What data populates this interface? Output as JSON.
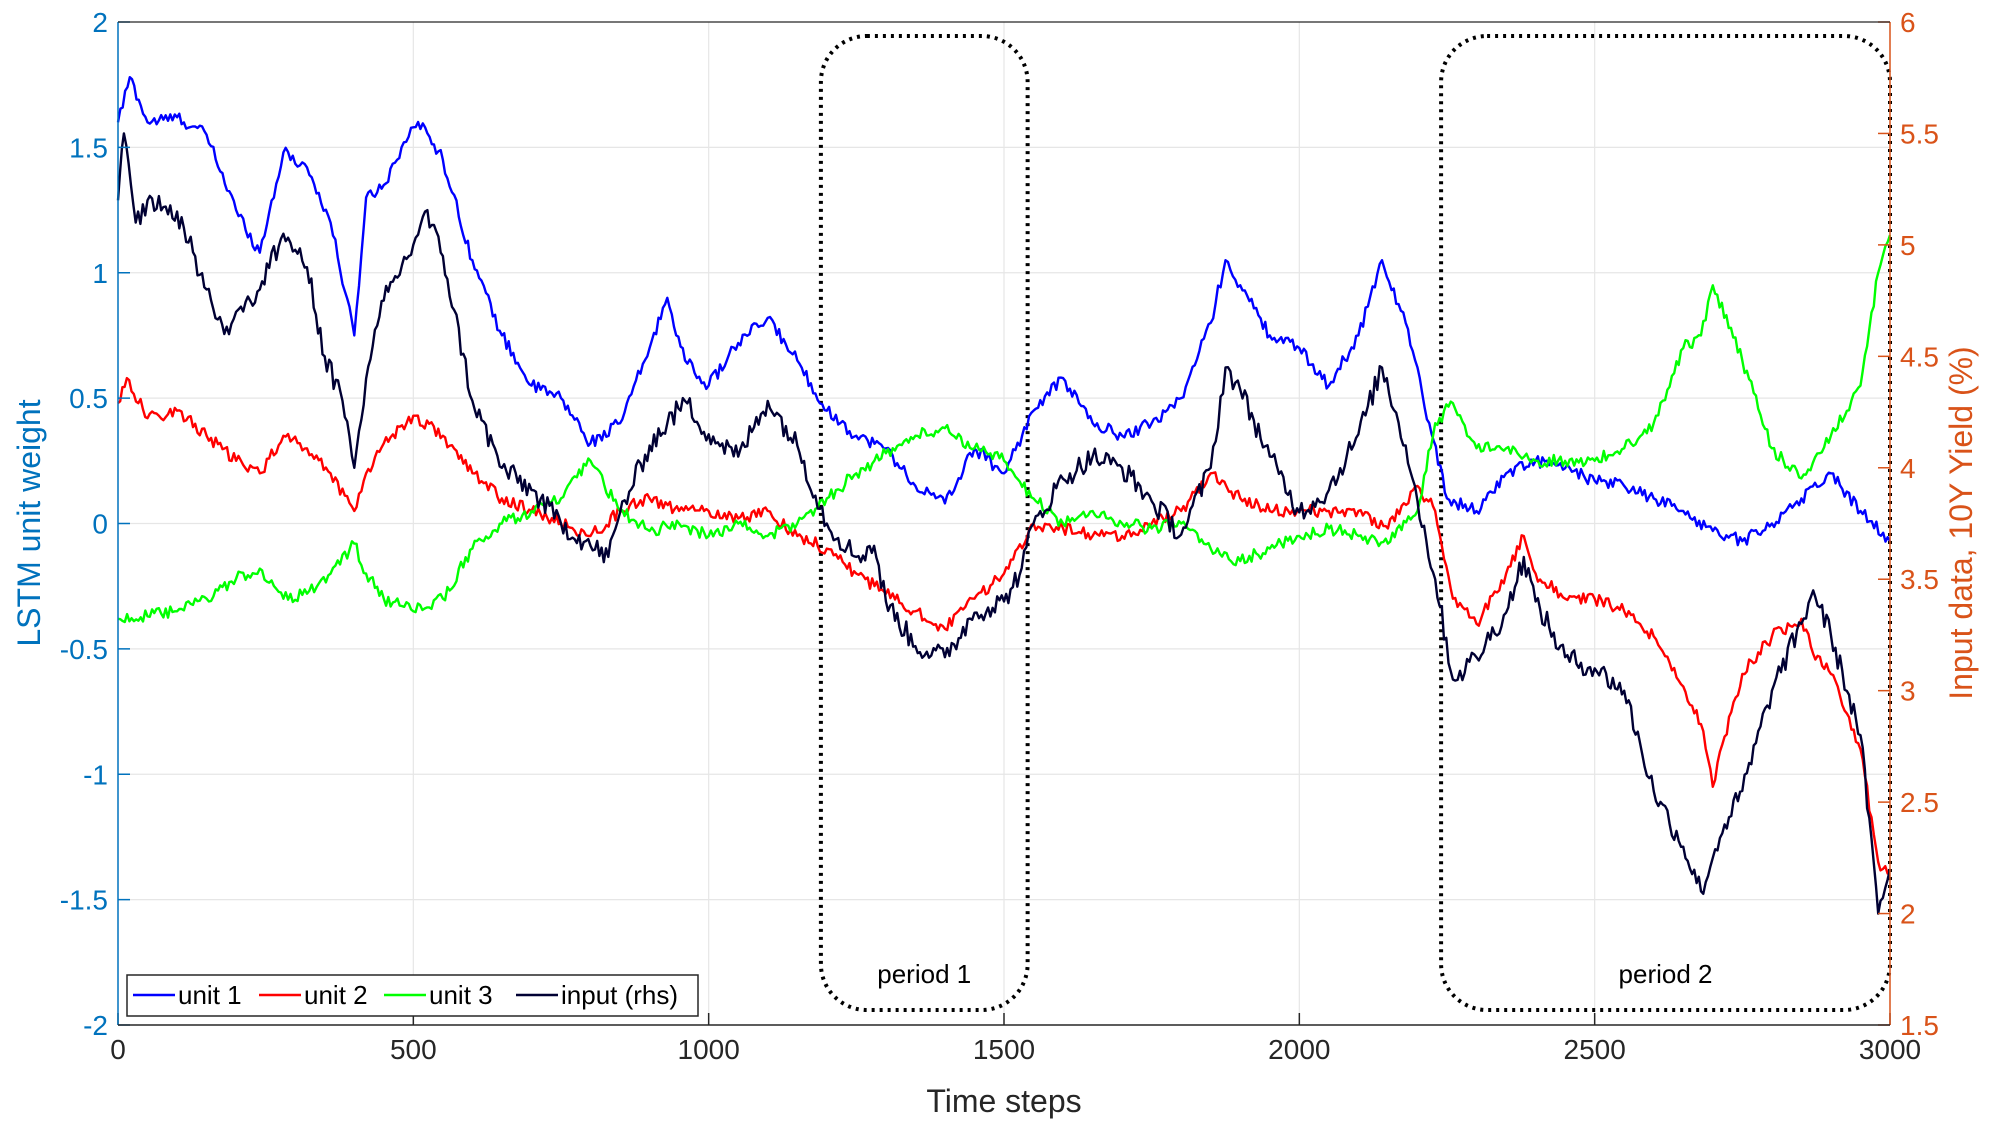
{
  "chart_data": {
    "type": "line",
    "xlabel": "Time steps",
    "ylabel_left": "LSTM unit weight",
    "ylabel_right": "Input data, 10Y Yield (%)",
    "xlim": [
      0,
      3000
    ],
    "ylim_left": [
      -2,
      2
    ],
    "ylim_right": [
      1.5,
      6
    ],
    "x_ticks": [
      "0",
      "500",
      "1000",
      "1500",
      "2000",
      "2500",
      "3000"
    ],
    "y_left_ticks": [
      "2",
      "1.5",
      "1",
      "0.5",
      "0",
      "-0.5",
      "-1",
      "-1.5",
      "-2"
    ],
    "y_right_ticks": [
      "6",
      "5.5",
      "5",
      "4.5",
      "4",
      "3.5",
      "3",
      "2.5",
      "2",
      "1.5"
    ],
    "grid": true,
    "legend_position": "bottom-left",
    "periods": [
      {
        "label": "period 1",
        "x_start": 1190,
        "x_end": 1540
      },
      {
        "label": "period 2",
        "x_start": 2240,
        "x_end": 3000
      }
    ],
    "series": [
      {
        "name": "unit 1",
        "axis": "left",
        "color": "#0000FF",
        "x": [
          0,
          20,
          50,
          100,
          150,
          200,
          240,
          280,
          320,
          360,
          400,
          420,
          450,
          480,
          500,
          520,
          550,
          600,
          650,
          700,
          750,
          800,
          850,
          900,
          930,
          960,
          1000,
          1050,
          1100,
          1150,
          1200,
          1250,
          1300,
          1350,
          1400,
          1450,
          1500,
          1550,
          1600,
          1650,
          1700,
          1750,
          1800,
          1850,
          1875,
          1900,
          1950,
          2000,
          2050,
          2100,
          2140,
          2180,
          2220,
          2250,
          2300,
          2350,
          2400,
          2450,
          2500,
          2550,
          2600,
          2650,
          2700,
          2750,
          2800,
          2850,
          2900,
          2950,
          3000
        ],
        "y": [
          1.6,
          1.78,
          1.6,
          1.62,
          1.55,
          1.25,
          1.08,
          1.48,
          1.42,
          1.2,
          0.75,
          1.3,
          1.35,
          1.5,
          1.58,
          1.58,
          1.45,
          1.05,
          0.75,
          0.55,
          0.5,
          0.32,
          0.4,
          0.7,
          0.9,
          0.65,
          0.55,
          0.72,
          0.82,
          0.65,
          0.45,
          0.35,
          0.3,
          0.15,
          0.08,
          0.3,
          0.2,
          0.45,
          0.58,
          0.4,
          0.35,
          0.4,
          0.5,
          0.8,
          1.05,
          0.95,
          0.75,
          0.7,
          0.55,
          0.75,
          1.05,
          0.8,
          0.4,
          0.1,
          0.05,
          0.2,
          0.25,
          0.22,
          0.17,
          0.15,
          0.1,
          0.05,
          -0.03,
          -0.07,
          0.0,
          0.1,
          0.2,
          0.05,
          -0.07
        ]
      },
      {
        "name": "unit 2",
        "axis": "left",
        "color": "#FF0000",
        "x": [
          0,
          15,
          50,
          100,
          150,
          200,
          240,
          280,
          320,
          360,
          400,
          420,
          450,
          500,
          550,
          600,
          650,
          700,
          750,
          800,
          850,
          900,
          950,
          1000,
          1050,
          1100,
          1150,
          1200,
          1250,
          1300,
          1350,
          1400,
          1450,
          1500,
          1550,
          1600,
          1650,
          1700,
          1750,
          1800,
          1850,
          1900,
          1950,
          2000,
          2050,
          2100,
          2150,
          2200,
          2230,
          2260,
          2300,
          2350,
          2380,
          2400,
          2450,
          2500,
          2550,
          2600,
          2650,
          2680,
          2700,
          2720,
          2750,
          2800,
          2850,
          2870,
          2900,
          2950,
          2980,
          3000
        ],
        "y": [
          0.48,
          0.58,
          0.42,
          0.45,
          0.35,
          0.25,
          0.2,
          0.35,
          0.3,
          0.2,
          0.05,
          0.2,
          0.32,
          0.43,
          0.35,
          0.2,
          0.1,
          0.05,
          0.0,
          -0.05,
          0.05,
          0.1,
          0.05,
          0.05,
          0.02,
          0.05,
          -0.05,
          -0.1,
          -0.2,
          -0.28,
          -0.35,
          -0.42,
          -0.3,
          -0.2,
          0.0,
          -0.02,
          -0.05,
          -0.05,
          0.0,
          0.05,
          0.2,
          0.1,
          0.05,
          0.05,
          0.05,
          0.05,
          -0.02,
          0.15,
          0.05,
          -0.3,
          -0.4,
          -0.2,
          -0.05,
          -0.2,
          -0.3,
          -0.3,
          -0.35,
          -0.45,
          -0.65,
          -0.8,
          -1.05,
          -0.85,
          -0.6,
          -0.45,
          -0.38,
          -0.52,
          -0.6,
          -0.9,
          -1.35,
          -1.4
        ]
      },
      {
        "name": "unit 3",
        "axis": "left",
        "color": "#00FF00",
        "x": [
          0,
          50,
          100,
          150,
          200,
          240,
          280,
          320,
          360,
          400,
          420,
          450,
          500,
          550,
          600,
          650,
          700,
          750,
          800,
          850,
          900,
          950,
          1000,
          1050,
          1100,
          1150,
          1200,
          1250,
          1300,
          1350,
          1400,
          1450,
          1500,
          1550,
          1600,
          1650,
          1700,
          1750,
          1800,
          1850,
          1900,
          1950,
          2000,
          2050,
          2100,
          2150,
          2200,
          2230,
          2260,
          2300,
          2350,
          2400,
          2450,
          2500,
          2550,
          2600,
          2650,
          2680,
          2700,
          2750,
          2800,
          2850,
          2900,
          2950,
          2980,
          3000
        ],
        "y": [
          -0.38,
          -0.37,
          -0.35,
          -0.3,
          -0.22,
          -0.18,
          -0.3,
          -0.28,
          -0.2,
          -0.08,
          -0.2,
          -0.3,
          -0.35,
          -0.3,
          -0.1,
          0.0,
          0.05,
          0.1,
          0.25,
          0.05,
          -0.03,
          0.0,
          -0.05,
          0.0,
          -0.05,
          0.0,
          0.1,
          0.2,
          0.28,
          0.35,
          0.38,
          0.3,
          0.25,
          0.1,
          0.0,
          0.05,
          0.0,
          -0.02,
          0.0,
          -0.1,
          -0.15,
          -0.1,
          -0.05,
          -0.02,
          -0.05,
          -0.08,
          0.05,
          0.4,
          0.48,
          0.3,
          0.3,
          0.25,
          0.25,
          0.25,
          0.3,
          0.4,
          0.7,
          0.75,
          0.95,
          0.65,
          0.3,
          0.18,
          0.35,
          0.55,
          1.0,
          1.15
        ]
      },
      {
        "name": "input (rhs)",
        "axis": "right",
        "color": "#000033",
        "x": [
          0,
          10,
          30,
          50,
          100,
          150,
          180,
          200,
          240,
          280,
          320,
          350,
          380,
          400,
          420,
          450,
          500,
          520,
          550,
          600,
          650,
          700,
          750,
          800,
          830,
          850,
          900,
          930,
          960,
          1000,
          1050,
          1100,
          1150,
          1200,
          1250,
          1280,
          1300,
          1350,
          1400,
          1450,
          1500,
          1530,
          1550,
          1600,
          1650,
          1700,
          1750,
          1800,
          1850,
          1875,
          1900,
          1950,
          2000,
          2050,
          2100,
          2140,
          2180,
          2200,
          2230,
          2260,
          2300,
          2350,
          2380,
          2400,
          2450,
          2500,
          2550,
          2600,
          2650,
          2680,
          2700,
          2720,
          2750,
          2800,
          2850,
          2870,
          2900,
          2950,
          2980,
          3000
        ],
        "y": [
          5.2,
          5.5,
          5.1,
          5.2,
          5.15,
          4.8,
          4.6,
          4.7,
          4.8,
          5.05,
          4.9,
          4.5,
          4.3,
          4.0,
          4.4,
          4.75,
          5.0,
          5.15,
          4.95,
          4.3,
          4.0,
          3.9,
          3.75,
          3.65,
          3.6,
          3.8,
          4.1,
          4.2,
          4.3,
          4.15,
          4.05,
          4.3,
          4.1,
          3.75,
          3.6,
          3.65,
          3.4,
          3.2,
          3.15,
          3.35,
          3.4,
          3.55,
          3.75,
          3.95,
          4.05,
          4.0,
          3.85,
          3.7,
          4.0,
          4.45,
          4.35,
          4.05,
          3.8,
          3.9,
          4.15,
          4.45,
          4.1,
          3.85,
          3.5,
          3.05,
          3.15,
          3.35,
          3.6,
          3.4,
          3.15,
          3.1,
          3.0,
          2.55,
          2.3,
          2.1,
          2.25,
          2.4,
          2.55,
          3.0,
          3.3,
          3.45,
          3.25,
          2.8,
          2.0,
          2.2
        ]
      }
    ]
  }
}
